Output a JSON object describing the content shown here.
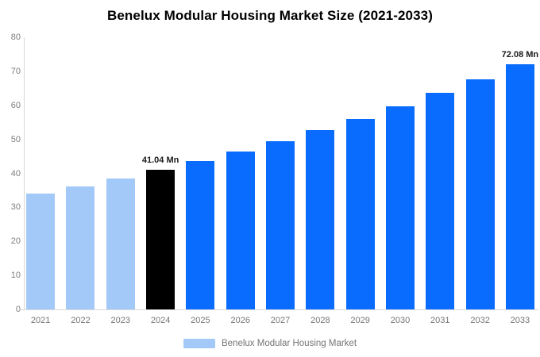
{
  "title": "Benelux Modular Housing Market Size (2021-2033)",
  "colors": {
    "historical_bar": "#A2C9F8",
    "base_year_bar": "#000000",
    "forecast_bar": "#0A6CFF",
    "axis_line": "#D9D9D9",
    "tick_text": "#7E7E7E",
    "title_text": "#000000",
    "value_label_text": "#1A1A1A",
    "background": "#FFFFFF"
  },
  "chart_data": {
    "type": "bar",
    "title": "Benelux Modular Housing Market Size (2021-2033)",
    "xlabel": "",
    "ylabel": "",
    "unit": "Mn",
    "categories": [
      "2021",
      "2022",
      "2023",
      "2024",
      "2025",
      "2026",
      "2027",
      "2028",
      "2029",
      "2030",
      "2031",
      "2032",
      "2033"
    ],
    "values": [
      34.0,
      36.2,
      38.6,
      41.04,
      43.7,
      46.5,
      49.5,
      52.7,
      56.1,
      59.8,
      63.6,
      67.7,
      72.08
    ],
    "bar_colors": [
      "#A2C9F8",
      "#A2C9F8",
      "#A2C9F8",
      "#000000",
      "#0A6CFF",
      "#0A6CFF",
      "#0A6CFF",
      "#0A6CFF",
      "#0A6CFF",
      "#0A6CFF",
      "#0A6CFF",
      "#0A6CFF",
      "#0A6CFF"
    ],
    "point_labels": [
      "",
      "",
      "",
      "41.04 Mn",
      "",
      "",
      "",
      "",
      "",
      "",
      "",
      "",
      "72.08 Mn"
    ],
    "ylim": [
      0,
      80
    ],
    "yticks": [
      0,
      10,
      20,
      30,
      40,
      50,
      60,
      70,
      80
    ],
    "grid": false,
    "legend": {
      "position": "bottom",
      "label": "Benelux Modular Housing Market",
      "swatch_color": "#A2C9F8"
    }
  }
}
